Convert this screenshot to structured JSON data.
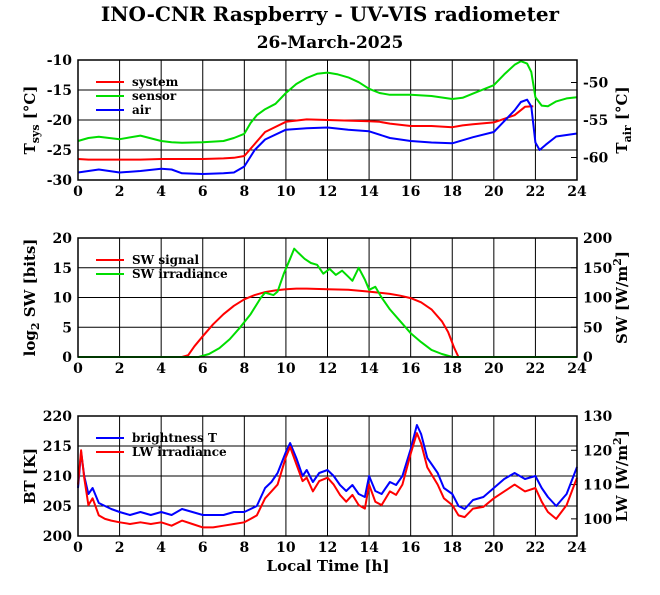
{
  "title": "INO-CNR Raspberry - UV-VIS radiometer",
  "subtitle": "26-March-2025",
  "x_label": "Local Time [h]",
  "x_ticks": [
    "0",
    "2",
    "4",
    "6",
    "8",
    "10",
    "12",
    "14",
    "16",
    "18",
    "20",
    "22",
    "24"
  ],
  "chart_data": [
    {
      "type": "line",
      "panel": "temperatures",
      "ylabel": "T_sys [°C]",
      "ylabel_main": "T",
      "ylabel_sub": "sys",
      "ylabel_unit": " [°C]",
      "y2label": "T_air [°C]",
      "y2label_main": "T",
      "y2label_sub": "air",
      "y2label_unit": " [°C]",
      "xlim": [
        0,
        24
      ],
      "ylim": [
        -30,
        -10
      ],
      "y2lim": [
        -63,
        -47
      ],
      "y_ticks": [
        "-10",
        "-15",
        "-20",
        "-25",
        "-30"
      ],
      "y2_ticks": [
        "-50",
        "-55",
        "-60"
      ],
      "grid": true,
      "legend": "top-left",
      "series": [
        {
          "name": "system",
          "color": "#ff0000",
          "axis": "left",
          "x": [
            0.0,
            0.5,
            1,
            2,
            3,
            4,
            5,
            6,
            7,
            7.5,
            8,
            8.5,
            9,
            10,
            11,
            12,
            13,
            14,
            14.5,
            15,
            16,
            17,
            18,
            18.5,
            19,
            20,
            21,
            21.5,
            21.9
          ],
          "y": [
            -26.5,
            -26.6,
            -26.6,
            -26.6,
            -26.6,
            -26.5,
            -26.5,
            -26.5,
            -26.4,
            -26.3,
            -26.0,
            -24.0,
            -22.0,
            -20.3,
            -19.9,
            -20.0,
            -20.1,
            -20.2,
            -20.3,
            -20.6,
            -21.0,
            -21.0,
            -21.2,
            -20.9,
            -20.7,
            -20.4,
            -19.2,
            -17.8,
            -17.7
          ]
        },
        {
          "name": "sensor",
          "color": "#00dd00",
          "axis": "left",
          "x": [
            0,
            0.5,
            1,
            2,
            3,
            4,
            4.5,
            5,
            6,
            7,
            7.5,
            8,
            8.3,
            8.6,
            9,
            9.5,
            10,
            10.5,
            11,
            11.5,
            12,
            12.5,
            13,
            13.5,
            14,
            14.5,
            15,
            16,
            17,
            18,
            18.5,
            19,
            20,
            20.5,
            21,
            21.3,
            21.6,
            21.8,
            22,
            22.3,
            22.6,
            23,
            23.5,
            24
          ],
          "y": [
            -23.5,
            -23.0,
            -22.8,
            -23.2,
            -22.6,
            -23.5,
            -23.7,
            -23.8,
            -23.7,
            -23.5,
            -23.0,
            -22.3,
            -20.5,
            -19.2,
            -18.2,
            -17.3,
            -15.5,
            -14.0,
            -13.0,
            -12.3,
            -12.1,
            -12.4,
            -12.9,
            -13.7,
            -14.8,
            -15.5,
            -15.8,
            -15.8,
            -16.0,
            -16.5,
            -16.3,
            -15.6,
            -14.2,
            -12.4,
            -10.8,
            -10.2,
            -10.6,
            -12.0,
            -16.2,
            -17.6,
            -17.7,
            -16.9,
            -16.4,
            -16.2
          ]
        },
        {
          "name": "air",
          "color": "#0000ff",
          "axis": "right",
          "x": [
            0,
            0.5,
            1,
            2,
            3,
            4,
            4.5,
            5,
            6,
            7,
            7.5,
            8,
            8.5,
            9,
            10,
            11,
            12,
            13,
            14,
            15,
            16,
            17,
            18,
            19,
            20,
            21,
            21.3,
            21.6,
            21.8,
            22,
            22.2,
            22.5,
            23,
            23.5,
            24
          ],
          "y": [
            -62.0,
            -61.8,
            -61.6,
            -62.0,
            -61.8,
            -61.5,
            -61.6,
            -62.1,
            -62.2,
            -62.1,
            -62.0,
            -61.2,
            -59.0,
            -57.6,
            -56.3,
            -56.1,
            -56.0,
            -56.3,
            -56.5,
            -57.4,
            -57.8,
            -58.0,
            -58.1,
            -57.3,
            -56.6,
            -53.7,
            -52.6,
            -52.3,
            -53.2,
            -58.0,
            -59.0,
            -58.3,
            -57.2,
            -57.0,
            -56.8
          ]
        }
      ]
    },
    {
      "type": "line",
      "panel": "shortwave",
      "ylabel": "log2 SW [bits]",
      "ylabel_main": "log",
      "ylabel_sub": "2",
      "ylabel_unit": " SW [bits]",
      "y2label": "SW [W/m2]",
      "y2label_main": "SW [W/m",
      "y2label_sup": "2",
      "y2label_unit": "]",
      "xlim": [
        0,
        24
      ],
      "ylim": [
        0,
        20
      ],
      "y2lim": [
        0,
        200
      ],
      "y_ticks": [
        "0",
        "5",
        "10",
        "15",
        "20"
      ],
      "y2_ticks": [
        "0",
        "50",
        "100",
        "150",
        "200"
      ],
      "grid": true,
      "legend": "top-left",
      "series": [
        {
          "name": "SW signal",
          "color": "#ff0000",
          "axis": "left",
          "x": [
            0,
            5.0,
            5.3,
            5.6,
            6,
            6.5,
            7,
            7.5,
            8,
            8.5,
            9,
            9.5,
            10,
            10.5,
            11,
            12,
            13,
            14,
            14.5,
            15,
            15.5,
            16,
            16.5,
            17,
            17.5,
            17.8,
            18.1,
            18.3,
            24
          ],
          "y": [
            0,
            0,
            0.3,
            1.8,
            3.5,
            5.5,
            7.2,
            8.6,
            9.7,
            10.4,
            10.9,
            11.2,
            11.4,
            11.5,
            11.5,
            11.4,
            11.3,
            11.0,
            10.8,
            10.6,
            10.3,
            9.9,
            9.2,
            8.0,
            6.0,
            4.2,
            1.5,
            0,
            0
          ]
        },
        {
          "name": "SW irradiance",
          "color": "#00dd00",
          "axis": "right",
          "x": [
            0,
            5.8,
            6.3,
            6.8,
            7.3,
            7.8,
            8.3,
            8.8,
            9.0,
            9.4,
            9.6,
            9.9,
            10.2,
            10.4,
            10.6,
            10.9,
            11.2,
            11.5,
            11.8,
            12.1,
            12.4,
            12.7,
            13.0,
            13.2,
            13.5,
            13.8,
            14.0,
            14.3,
            14.6,
            15.0,
            15.5,
            16.0,
            16.5,
            17.0,
            17.5,
            18.0,
            24
          ],
          "y": [
            0,
            0,
            5,
            15,
            30,
            50,
            72,
            100,
            108,
            104,
            110,
            140,
            165,
            182,
            175,
            165,
            158,
            155,
            140,
            148,
            138,
            145,
            135,
            128,
            150,
            130,
            113,
            118,
            100,
            80,
            60,
            40,
            25,
            12,
            5,
            0,
            0
          ]
        }
      ]
    },
    {
      "type": "line",
      "panel": "longwave",
      "ylabel": "BT [K]",
      "y2label": "LW [W/m2]",
      "y2label_main": "LW [W/m",
      "y2label_sup": "2",
      "y2label_unit": "]",
      "xlim": [
        0,
        24
      ],
      "ylim": [
        200,
        220
      ],
      "y2lim": [
        95,
        130
      ],
      "y_ticks": [
        "200",
        "205",
        "210",
        "215",
        "220"
      ],
      "y2_ticks": [
        "100",
        "110",
        "120",
        "130"
      ],
      "grid": true,
      "legend": "top-left",
      "series": [
        {
          "name": "brightness T",
          "color": "#0000ff",
          "axis": "left",
          "x": [
            0,
            0.15,
            0.3,
            0.5,
            0.7,
            1.0,
            1.3,
            1.6,
            2,
            2.5,
            3,
            3.5,
            4,
            4.5,
            5,
            5.5,
            6,
            6.5,
            7,
            7.5,
            8,
            8.3,
            8.6,
            9,
            9.3,
            9.6,
            10,
            10.2,
            10.5,
            10.8,
            11,
            11.3,
            11.6,
            12,
            12.3,
            12.6,
            12.9,
            13.2,
            13.5,
            13.8,
            14,
            14.3,
            14.6,
            15,
            15.3,
            15.6,
            16,
            16.3,
            16.5,
            16.8,
            17,
            17.3,
            17.6,
            18,
            18.3,
            18.6,
            19,
            19.5,
            20,
            20.5,
            21,
            21.5,
            22,
            22.3,
            22.6,
            23,
            23.5,
            24
          ],
          "y": [
            208,
            214,
            210,
            207,
            208,
            205.5,
            205,
            204.5,
            204,
            203.5,
            204,
            203.5,
            204,
            203.5,
            204.5,
            204,
            203.5,
            203.5,
            203.5,
            204,
            204,
            204.5,
            205,
            208,
            209,
            210.5,
            214,
            215.5,
            213,
            210,
            211,
            209,
            210.5,
            211,
            210,
            208.5,
            207.5,
            208.5,
            207,
            206.5,
            210,
            207.5,
            207,
            209,
            208.5,
            210,
            214.5,
            218.5,
            217,
            213,
            212,
            210.5,
            208,
            207,
            205,
            204.5,
            206,
            206.5,
            208,
            209.5,
            210.5,
            209.5,
            210,
            208,
            206.5,
            205,
            207,
            211.5
          ]
        },
        {
          "name": "LW irradiance",
          "color": "#ff0000",
          "axis": "right",
          "x": [
            0,
            0.15,
            0.3,
            0.5,
            0.7,
            1.0,
            1.3,
            1.6,
            2,
            2.5,
            3,
            3.5,
            4,
            4.5,
            5,
            5.5,
            6,
            6.5,
            7,
            7.5,
            8,
            8.3,
            8.6,
            9,
            9.3,
            9.6,
            10,
            10.2,
            10.5,
            10.8,
            11,
            11.3,
            11.6,
            12,
            12.3,
            12.6,
            12.9,
            13.2,
            13.5,
            13.8,
            14,
            14.3,
            14.6,
            15,
            15.3,
            15.6,
            16,
            16.3,
            16.5,
            16.8,
            17,
            17.3,
            17.6,
            18,
            18.3,
            18.6,
            19,
            19.5,
            20,
            20.5,
            21,
            21.5,
            22,
            22.3,
            22.6,
            23,
            23.5,
            24
          ],
          "y": [
            110,
            120,
            112,
            104,
            106,
            101,
            100,
            99.5,
            99,
            98.5,
            99,
            98.5,
            99,
            98,
            99.5,
            98.5,
            97.5,
            97.5,
            98,
            98.5,
            99,
            100,
            101,
            106,
            108,
            110,
            118,
            121,
            116,
            111,
            112,
            108,
            111,
            112,
            110,
            107,
            105,
            107,
            104,
            103,
            110,
            105,
            104,
            108,
            107,
            110,
            119,
            125,
            122,
            115,
            113,
            110,
            106,
            104,
            101,
            100.5,
            103,
            103.5,
            106,
            108,
            110,
            108,
            109,
            105,
            102,
            100,
            104,
            112
          ]
        }
      ]
    }
  ]
}
